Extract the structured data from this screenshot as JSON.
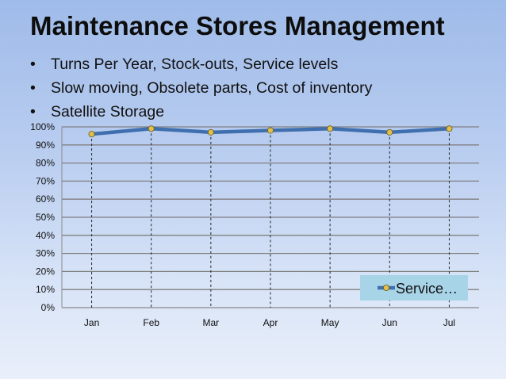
{
  "slide": {
    "title": "Maintenance Stores Management",
    "bullets": [
      "Turns Per Year, Stock-outs, Service levels",
      "Slow moving, Obsolete parts, Cost of inventory",
      "Satellite Storage"
    ],
    "bullet_glyph": "•"
  },
  "chart_data": {
    "type": "line",
    "title": "",
    "xlabel": "",
    "ylabel": "",
    "categories": [
      "Jan",
      "Feb",
      "Mar",
      "Apr",
      "May",
      "Jun",
      "Jul"
    ],
    "series": [
      {
        "name": "Service…",
        "values": [
          0.96,
          0.99,
          0.97,
          0.98,
          0.99,
          0.97,
          0.99
        ],
        "color": "#3f6fae",
        "marker_color": "#e3c04d"
      }
    ],
    "ylim": [
      0,
      1
    ],
    "yticks": [
      "0%",
      "10%",
      "20%",
      "30%",
      "40%",
      "50%",
      "60%",
      "70%",
      "80%",
      "90%",
      "100%"
    ],
    "grid": "horizontal",
    "drop_lines": true,
    "legend_position": "bottom-right",
    "legend_background": "#a8d4e8"
  }
}
